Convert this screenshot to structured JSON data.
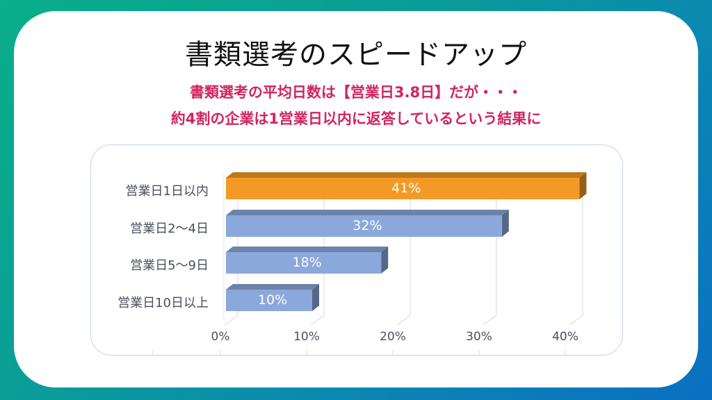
{
  "slide": {
    "title": "書類選考のスピードアップ",
    "subtitle_line1": "書類選考の平均日数は【営業日3.8日】だが・・・",
    "subtitle_line2": "約4割の企業は1営業日以内に返答しているという結果に"
  },
  "colors": {
    "background_gradient": [
      "#0aae8a",
      "#0b6fc2"
    ],
    "title": "#111111",
    "subtitle": "#d2245f",
    "highlight_bar": "#f39a26",
    "default_bar": "#8ba8da"
  },
  "chart_data": {
    "type": "bar",
    "orientation": "horizontal",
    "style": "3d",
    "title": "",
    "xlabel": "",
    "ylabel": "",
    "categories": [
      "営業日1日以内",
      "営業日2〜4日",
      "営業日5〜9日",
      "営業日10日以上"
    ],
    "values": [
      41,
      32,
      18,
      10
    ],
    "value_labels": [
      "41%",
      "32%",
      "18%",
      "10%"
    ],
    "unit": "%",
    "xlim": [
      0,
      40
    ],
    "x_ticks": [
      "0%",
      "10%",
      "20%",
      "30%",
      "40%"
    ],
    "grid": true,
    "legend": null,
    "bar_colors": [
      "#f39a26",
      "#8ba8da",
      "#8ba8da",
      "#8ba8da"
    ]
  }
}
